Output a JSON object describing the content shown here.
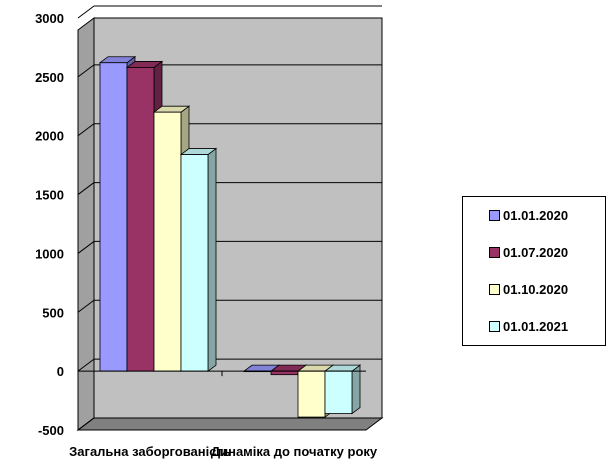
{
  "chart_data": {
    "type": "bar",
    "categories": [
      "Загальна заборгованість",
      "Динаміка до початку року"
    ],
    "series": [
      {
        "name": "01.01.2020",
        "color": "#9999ff",
        "values": [
          2620,
          0
        ]
      },
      {
        "name": "01.07.2020",
        "color": "#993366",
        "values": [
          2580,
          -30
        ]
      },
      {
        "name": "01.10.2020",
        "color": "#ffffcc",
        "values": [
          2200,
          -390
        ]
      },
      {
        "name": "01.01.2021",
        "color": "#ccffff",
        "values": [
          1840,
          -360
        ]
      }
    ],
    "yticks": [
      "-500",
      "0",
      "500",
      "1000",
      "1500",
      "2000",
      "2500",
      "3000"
    ],
    "ylim": [
      -500,
      3000
    ],
    "grid": true,
    "legend_position": "right",
    "plot_background": "#c0c0c0"
  }
}
